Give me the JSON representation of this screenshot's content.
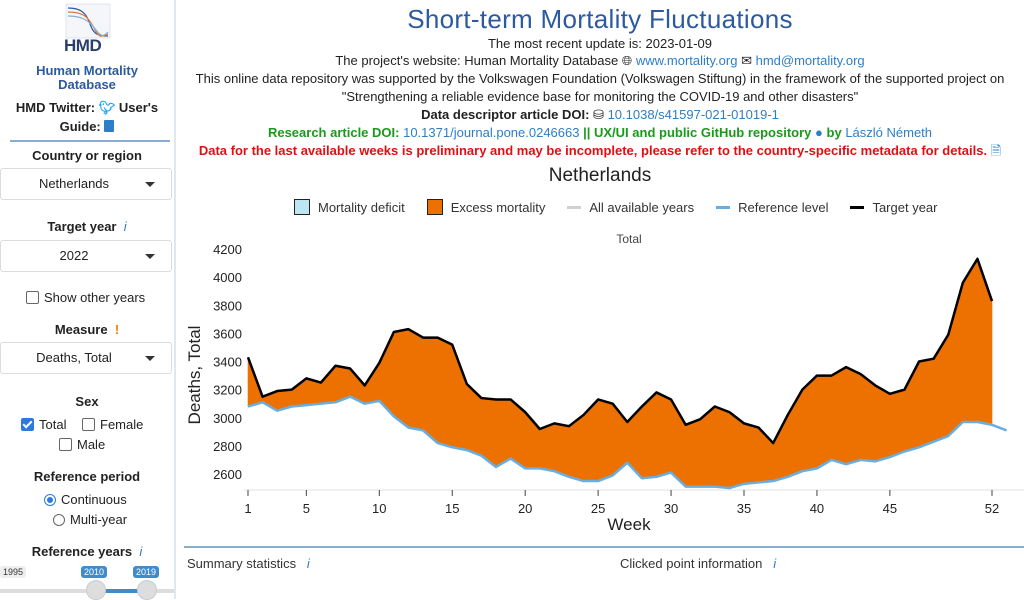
{
  "sidebar": {
    "logo_text": "HMD",
    "title_line1": "Human Mortality",
    "title_line2": "Database",
    "twitter_label": "HMD Twitter:",
    "guide_label_1": "User's",
    "guide_label_2": "Guide:",
    "country_label": "Country or region",
    "country_value": "Netherlands",
    "target_year_label": "Target year",
    "target_year_value": "2022",
    "show_other_years_label": "Show other years",
    "show_other_years_checked": false,
    "measure_label": "Measure",
    "measure_warning": "!",
    "measure_value": "Deaths, Total",
    "sex_label": "Sex",
    "sex_options": [
      {
        "label": "Total",
        "checked": true
      },
      {
        "label": "Female",
        "checked": false
      },
      {
        "label": "Male",
        "checked": false
      }
    ],
    "reference_period_label": "Reference period",
    "reference_period_options": [
      {
        "label": "Continuous",
        "selected": true
      },
      {
        "label": "Multi-year",
        "selected": false
      }
    ],
    "reference_years_label": "Reference years",
    "slider_min": "1995",
    "slider_from": "2010",
    "slider_to": "2019",
    "info_icon": "i"
  },
  "header": {
    "title": "Short-term Mortality Fluctuations",
    "update_text": "The most recent update is: 2023-01-09",
    "website_prefix": "The project's website: Human Mortality Database",
    "website_link": "www.mortality.org",
    "email_link": "hmd@mortality.org",
    "support_line1": "This online data repository was supported by the Volkswagen Foundation (Volkswagen Stiftung) in the framework of the supported project on",
    "support_line2": "\"Strengthening a reliable evidence base for monitoring the COVID-19 and other disasters\"",
    "descriptor_label": "Data descriptor article DOI:",
    "descriptor_doi": "10.1038/s41597-021-01019-1",
    "research_label": "Research article DOI:",
    "research_doi": "10.1371/journal.pone.0246663",
    "github_text": "|| UX/UI and public GitHub repository",
    "by_text": "by",
    "author": "László Németh",
    "warning": "Data for the last available weeks is preliminary and may be incomplete, please refer to the country-specific metadata for details."
  },
  "legend": [
    {
      "label": "Mortality deficit",
      "type": "box",
      "color": "#bde6f5"
    },
    {
      "label": "Excess mortality",
      "type": "box",
      "color": "#ed7100"
    },
    {
      "label": "All available years",
      "type": "line",
      "color": "#d0d0d0"
    },
    {
      "label": "Reference level",
      "type": "line",
      "color": "#6aaee0"
    },
    {
      "label": "Target year",
      "type": "line",
      "color": "#000000"
    }
  ],
  "bottom": {
    "summary_label": "Summary statistics",
    "clicked_label": "Clicked point information"
  },
  "chart_data": {
    "type": "area",
    "title": "Netherlands",
    "subtitle": "Total",
    "xlabel": "Week",
    "ylabel": "Deaths, Total",
    "xlim": [
      1,
      53
    ],
    "ylim": [
      2500,
      4250
    ],
    "x_ticks": [
      1,
      5,
      10,
      15,
      20,
      25,
      30,
      35,
      40,
      45,
      52
    ],
    "y_ticks": [
      2600,
      2800,
      3000,
      3200,
      3400,
      3600,
      3800,
      4000,
      4200
    ],
    "grid": false,
    "legend_position": "top",
    "series": [
      {
        "name": "Target year",
        "color": "#000000",
        "x": [
          1,
          2,
          3,
          4,
          5,
          6,
          7,
          8,
          9,
          10,
          11,
          12,
          13,
          14,
          15,
          16,
          17,
          18,
          19,
          20,
          21,
          22,
          23,
          24,
          25,
          26,
          27,
          28,
          29,
          30,
          31,
          32,
          33,
          34,
          35,
          36,
          37,
          38,
          39,
          40,
          41,
          42,
          43,
          44,
          45,
          46,
          47,
          48,
          49,
          50,
          51,
          52
        ],
        "values": [
          3430,
          3150,
          3190,
          3200,
          3280,
          3250,
          3370,
          3350,
          3230,
          3390,
          3610,
          3630,
          3570,
          3570,
          3520,
          3240,
          3140,
          3130,
          3130,
          3040,
          2920,
          2960,
          2940,
          3020,
          3130,
          3100,
          2970,
          3080,
          3180,
          3130,
          2950,
          2990,
          3080,
          3040,
          2960,
          2930,
          2820,
          3020,
          3200,
          3300,
          3300,
          3360,
          3310,
          3230,
          3170,
          3200,
          3400,
          3420,
          3590,
          3960,
          4130,
          3830
        ]
      },
      {
        "name": "Reference level",
        "color": "#6aaee0",
        "x": [
          1,
          2,
          3,
          4,
          5,
          6,
          7,
          8,
          9,
          10,
          11,
          12,
          13,
          14,
          15,
          16,
          17,
          18,
          19,
          20,
          21,
          22,
          23,
          24,
          25,
          26,
          27,
          28,
          29,
          30,
          31,
          32,
          33,
          34,
          35,
          36,
          37,
          38,
          39,
          40,
          41,
          42,
          43,
          44,
          45,
          46,
          47,
          48,
          49,
          50,
          51,
          52,
          53
        ],
        "values": [
          3080,
          3110,
          3050,
          3080,
          3090,
          3100,
          3110,
          3150,
          3100,
          3120,
          3010,
          2930,
          2910,
          2820,
          2790,
          2770,
          2730,
          2650,
          2710,
          2640,
          2640,
          2620,
          2580,
          2550,
          2550,
          2590,
          2680,
          2570,
          2580,
          2610,
          2510,
          2510,
          2510,
          2500,
          2530,
          2540,
          2550,
          2580,
          2620,
          2640,
          2700,
          2670,
          2700,
          2690,
          2720,
          2760,
          2790,
          2830,
          2870,
          2970,
          2970,
          2950,
          2910
        ]
      }
    ],
    "fills": [
      {
        "name": "Excess mortality",
        "color": "#ed7100"
      },
      {
        "name": "Mortality deficit",
        "color": "#bde6f5"
      }
    ]
  }
}
